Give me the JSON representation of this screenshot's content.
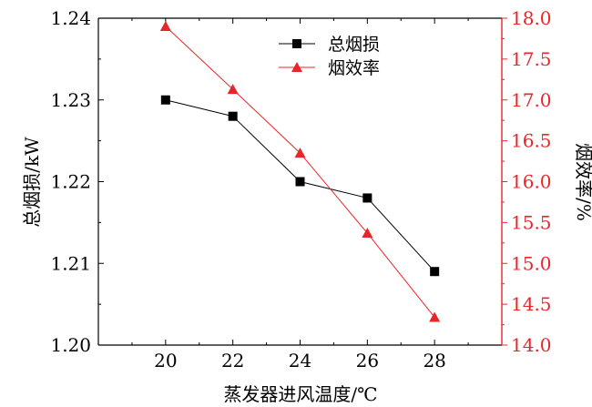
{
  "chart_data": {
    "type": "line",
    "x": [
      20,
      22,
      24,
      26,
      28
    ],
    "xlabel": "蒸发器进风温度/℃",
    "x_ticks": [
      "20",
      "22",
      "24",
      "26",
      "28"
    ],
    "xlim": [
      18,
      30
    ],
    "series": [
      {
        "name": "总烟损",
        "axis": "left",
        "marker": "square",
        "color": "#000000",
        "values": [
          1.23,
          1.228,
          1.22,
          1.218,
          1.209
        ]
      },
      {
        "name": "烟效率",
        "axis": "right",
        "marker": "triangle",
        "color": "#e8262a",
        "values": [
          17.9,
          17.13,
          16.35,
          15.37,
          14.34
        ]
      }
    ],
    "y_left": {
      "label": "总烟损/kW",
      "ylim": [
        1.2,
        1.24
      ],
      "ticks": [
        "1.20",
        "1.21",
        "1.22",
        "1.23",
        "1.24"
      ],
      "color": "#000000"
    },
    "y_right": {
      "label": "烟效率/%",
      "ylim": [
        14.0,
        18.0
      ],
      "ticks": [
        "14.0",
        "14.5",
        "15.0",
        "15.5",
        "16.0",
        "16.5",
        "17.0",
        "17.5",
        "18.0"
      ],
      "color": "#e8262a"
    },
    "legend_position": "top-right",
    "grid": false
  }
}
